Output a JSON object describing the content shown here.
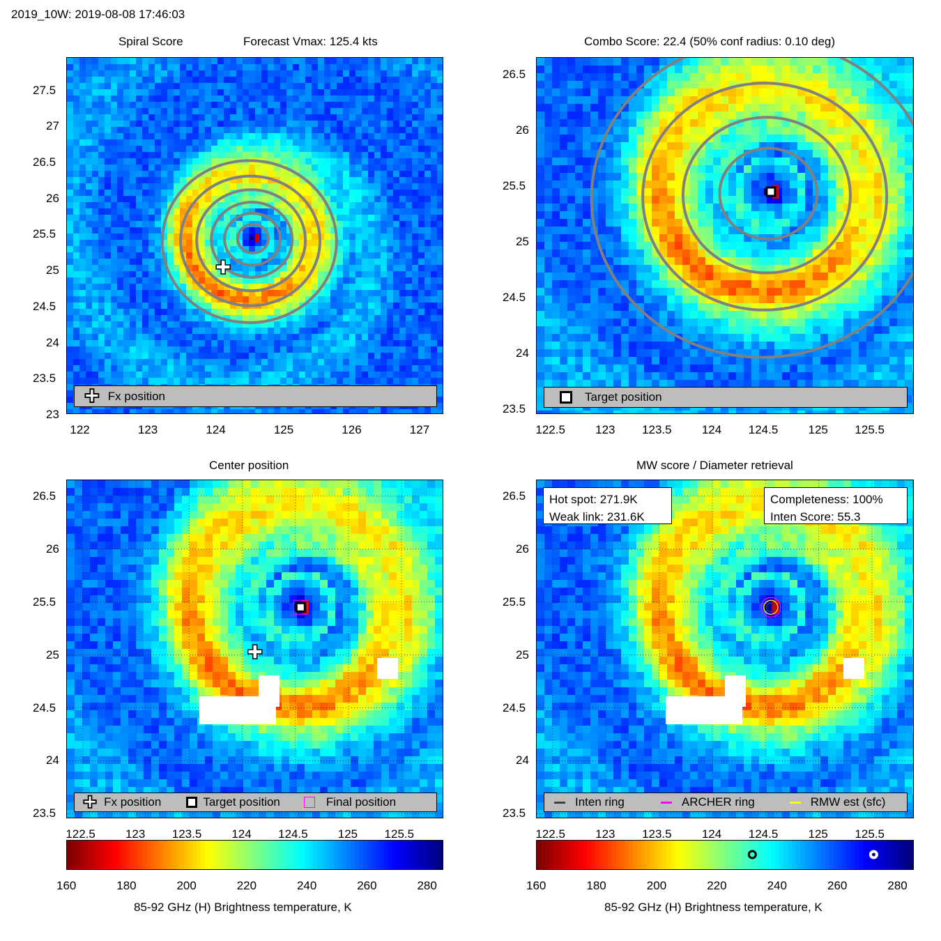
{
  "header": {
    "title": "2019_10W: 2019-08-08 17:46:03"
  },
  "colors": {
    "colormap": [
      "#7f0000",
      "#ff0000",
      "#ff8000",
      "#ffff00",
      "#80ff80",
      "#00ffff",
      "#0080ff",
      "#0000ff",
      "#00007f"
    ],
    "contour": "#808080",
    "legend_bg": "#bdbdbd",
    "inten_ring": "#404040",
    "archer_ring": "#ff00ff",
    "rmw": "#ffff00"
  },
  "panels": {
    "spiral": {
      "title_left": "Spiral Score",
      "title_right": "Forecast Vmax: 125.4 kts",
      "legend": {
        "fx_icon": "plus-marker-icon",
        "fx_label": "Fx position"
      }
    },
    "combo": {
      "title": "Combo Score: 22.4  (50% conf radius: 0.10 deg)",
      "legend": {
        "target_icon": "square-marker-icon",
        "target_label": "Target position"
      }
    },
    "center": {
      "title": "Center position",
      "legend": {
        "fx_label": "Fx position",
        "target_label": "Target position",
        "final_label": "Final position"
      },
      "colorbar_label": "85-92 GHz (H) Brightness temperature, K"
    },
    "mw": {
      "title": "MW score / Diameter retrieval",
      "info_left": {
        "hot_spot": "Hot spot: 271.9K",
        "weak_link": "Weak link: 231.6K"
      },
      "info_right": {
        "completeness": "Completeness: 100%",
        "inten_score": "Inten Score: 55.3"
      },
      "legend": {
        "inten_label": "Inten ring",
        "archer_label": "ARCHER ring",
        "rmw_label": "RMW est (sfc)"
      },
      "colorbar_label": "85-92 GHz (H) Brightness temperature, K"
    }
  },
  "chart_data": [
    {
      "type": "heatmap",
      "title": "Spiral Score",
      "subtitle": "Forecast Vmax: 125.4 kts",
      "xticks": [
        "122",
        "123",
        "124",
        "125",
        "126",
        "127"
      ],
      "xtick_values": [
        122,
        123,
        124,
        125,
        126,
        127
      ],
      "yticks": [
        "27.5",
        "27",
        "26.5",
        "26",
        "25.5",
        "25",
        "24.5",
        "24",
        "23.5",
        "23"
      ],
      "ytick_values": [
        27.5,
        27,
        26.5,
        26,
        25.5,
        25,
        24.5,
        24,
        23.5,
        23
      ],
      "xlim": [
        121.8,
        127.35
      ],
      "ylim": [
        23,
        27.95
      ],
      "markers": [
        {
          "label": "Fx position",
          "x": 124.1,
          "y": 25.05
        }
      ],
      "storm_center": {
        "x": 124.55,
        "y": 25.45
      }
    },
    {
      "type": "heatmap",
      "title": "Combo Score: 22.4  (50% conf radius: 0.10 deg)",
      "xticks": [
        "122.5",
        "123",
        "123.5",
        "124",
        "124.5",
        "125",
        "125.5"
      ],
      "xtick_values": [
        122.5,
        123,
        123.5,
        124,
        124.5,
        125,
        125.5
      ],
      "yticks": [
        "26.5",
        "26",
        "25.5",
        "25",
        "24.5",
        "24",
        "23.5"
      ],
      "ytick_values": [
        26.5,
        26,
        25.5,
        25,
        24.5,
        24,
        23.5
      ],
      "xlim": [
        122.35,
        125.9
      ],
      "ylim": [
        23.45,
        26.65
      ],
      "markers": [
        {
          "label": "Target position",
          "x": 124.55,
          "y": 25.45
        }
      ],
      "storm_center": {
        "x": 124.55,
        "y": 25.45
      }
    },
    {
      "type": "heatmap",
      "title": "Center position",
      "xticks": [
        "122.5",
        "123",
        "123.5",
        "124",
        "124.5",
        "125",
        "125.5"
      ],
      "xtick_values": [
        122.5,
        123,
        123.5,
        124,
        124.5,
        125,
        125.5
      ],
      "yticks": [
        "26.5",
        "26",
        "25.5",
        "25",
        "24.5",
        "24",
        "23.5"
      ],
      "ytick_values": [
        26.5,
        26,
        25.5,
        25,
        24.5,
        24,
        23.5
      ],
      "xlim": [
        122.35,
        125.9
      ],
      "ylim": [
        23.45,
        26.65
      ],
      "markers": [
        {
          "label": "Fx position",
          "x": 124.12,
          "y": 25.03
        },
        {
          "label": "Target position",
          "x": 124.55,
          "y": 25.45
        },
        {
          "label": "Final position",
          "x": 124.55,
          "y": 25.45
        }
      ],
      "storm_center": {
        "x": 124.55,
        "y": 25.45
      },
      "colorbar": {
        "ticks": [
          "160",
          "180",
          "200",
          "220",
          "240",
          "260",
          "280"
        ],
        "range": [
          160,
          285
        ]
      }
    },
    {
      "type": "heatmap",
      "title": "MW score / Diameter retrieval",
      "xticks": [
        "122.5",
        "123",
        "123.5",
        "124",
        "124.5",
        "125",
        "125.5"
      ],
      "xtick_values": [
        122.5,
        123,
        123.5,
        124,
        124.5,
        125,
        125.5
      ],
      "yticks": [
        "26.5",
        "26",
        "25.5",
        "25",
        "24.5",
        "24",
        "23.5"
      ],
      "ytick_values": [
        26.5,
        26,
        25.5,
        25,
        24.5,
        24,
        23.5
      ],
      "xlim": [
        122.35,
        125.9
      ],
      "ylim": [
        23.45,
        26.65
      ],
      "storm_center": {
        "x": 124.55,
        "y": 25.45
      },
      "hot_spot_K": 271.9,
      "weak_link_K": 231.6,
      "completeness_pct": 100,
      "inten_score": 55.3,
      "colorbar": {
        "ticks": [
          "160",
          "180",
          "200",
          "220",
          "240",
          "260",
          "280"
        ],
        "range": [
          160,
          285
        ],
        "markers": [
          {
            "label": "Weak link",
            "value": 231.6
          },
          {
            "label": "Hot spot",
            "value": 271.9
          }
        ]
      }
    }
  ]
}
